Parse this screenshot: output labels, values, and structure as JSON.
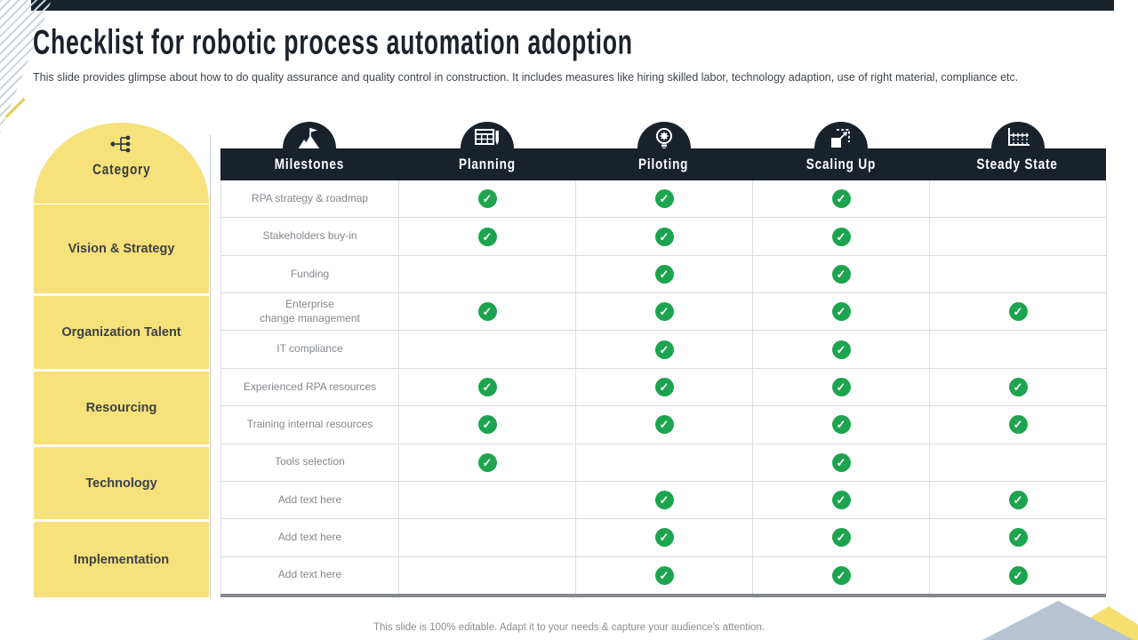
{
  "slide": {
    "title": "Checklist for robotic process automation adoption",
    "subtitle": "This slide provides glimpse about how to do quality assurance and quality control in construction. It includes measures like hiring skilled labor, technology adaption, use of right material, compliance etc.",
    "footer": "This slide is 100% editable. Adapt it to your needs & capture your audience's attention."
  },
  "colors": {
    "accent_yellow": "#F6E17A",
    "dark_header": "#19212B",
    "check_green": "#1DA44E",
    "triangle_blue": "#B5C3D2",
    "triangle_yellow": "#F6DF6E"
  },
  "category_panel": {
    "header": {
      "label": "Category",
      "icon": "hierarchy-icon"
    },
    "items": [
      {
        "label": "Vision & Strategy"
      },
      {
        "label": "Organization Talent"
      },
      {
        "label": "Resourcing"
      },
      {
        "label": "Technology"
      },
      {
        "label": "Implementation"
      }
    ]
  },
  "table": {
    "columns": [
      {
        "label": "Milestones",
        "icon": "flag-mountain-icon"
      },
      {
        "label": "Planning",
        "icon": "calendar-icon"
      },
      {
        "label": "Piloting",
        "icon": "bulb-gear-icon"
      },
      {
        "label": "Scaling Up",
        "icon": "scale-expand-icon"
      },
      {
        "label": "Steady State",
        "icon": "steady-chart-icon"
      }
    ],
    "rows": [
      {
        "label": "RPA strategy & roadmap",
        "checks": [
          true,
          true,
          true,
          false
        ]
      },
      {
        "label": "Stakeholders buy-in",
        "checks": [
          true,
          true,
          true,
          false
        ]
      },
      {
        "label": "Funding",
        "checks": [
          false,
          true,
          true,
          false
        ]
      },
      {
        "label": "Enterprise\nchange management",
        "checks": [
          true,
          true,
          true,
          true
        ]
      },
      {
        "label": "IT compliance",
        "checks": [
          false,
          true,
          true,
          false
        ]
      },
      {
        "label": "Experienced RPA resources",
        "checks": [
          true,
          true,
          true,
          true
        ]
      },
      {
        "label": "Training internal resources",
        "checks": [
          true,
          true,
          true,
          true
        ]
      },
      {
        "label": "Tools selection",
        "checks": [
          true,
          false,
          true,
          false
        ]
      },
      {
        "label": "Add text here",
        "checks": [
          false,
          true,
          true,
          true
        ]
      },
      {
        "label": "Add text here",
        "checks": [
          false,
          true,
          true,
          true
        ]
      },
      {
        "label": "Add text here",
        "checks": [
          false,
          true,
          true,
          true
        ]
      }
    ]
  }
}
